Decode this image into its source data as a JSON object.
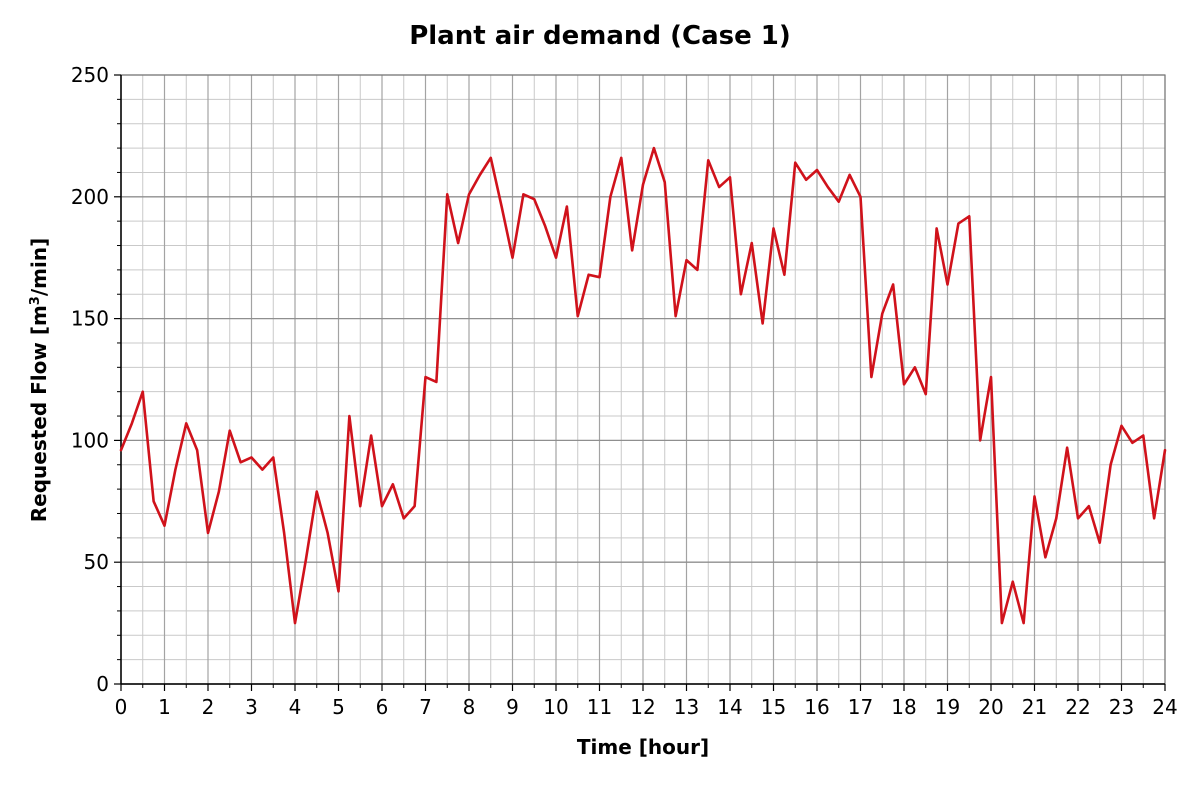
{
  "chart_data": {
    "type": "line",
    "title": "Plant air demand (Case 1)",
    "xlabel": "Time [hour]",
    "ylabel_prefix": "Requested Flow [m",
    "ylabel_sup": "3",
    "ylabel_suffix": "/min]",
    "xlim": [
      0,
      24
    ],
    "ylim": [
      0,
      250
    ],
    "x_ticks": [
      0,
      1,
      2,
      3,
      4,
      5,
      6,
      7,
      8,
      9,
      10,
      11,
      12,
      13,
      14,
      15,
      16,
      17,
      18,
      19,
      20,
      21,
      22,
      23,
      24
    ],
    "y_ticks": [
      0,
      50,
      100,
      150,
      200,
      250
    ],
    "x_minor_step": 0.5,
    "y_minor_step": 10,
    "grid": true,
    "series": [
      {
        "name": "Requested Flow",
        "color": "#d0121b",
        "x": [
          0,
          0.25,
          0.5,
          0.75,
          1,
          1.25,
          1.5,
          1.75,
          2,
          2.25,
          2.5,
          2.75,
          3,
          3.25,
          3.5,
          3.75,
          4,
          4.25,
          4.5,
          4.75,
          5,
          5.25,
          5.5,
          5.75,
          6,
          6.25,
          6.5,
          6.75,
          7,
          7.25,
          7.5,
          7.75,
          8,
          8.25,
          8.5,
          8.75,
          9,
          9.25,
          9.5,
          9.75,
          10,
          10.25,
          10.5,
          10.75,
          11,
          11.25,
          11.5,
          11.75,
          12,
          12.25,
          12.5,
          12.75,
          13,
          13.25,
          13.5,
          13.75,
          14,
          14.25,
          14.5,
          14.75,
          15,
          15.25,
          15.5,
          15.75,
          16,
          16.25,
          16.5,
          16.75,
          17,
          17.25,
          17.5,
          17.75,
          18,
          18.25,
          18.5,
          18.75,
          19,
          19.25,
          19.5,
          19.75,
          20,
          20.25,
          20.5,
          20.75,
          21,
          21.25,
          21.5,
          21.75,
          22,
          22.25,
          22.5,
          22.75,
          23,
          23.25,
          23.5,
          23.75,
          24
        ],
        "y": [
          96,
          107,
          120,
          75,
          65,
          88,
          107,
          96,
          62,
          79,
          104,
          91,
          93,
          88,
          93,
          62,
          25,
          51,
          79,
          62,
          38,
          110,
          73,
          102,
          73,
          82,
          68,
          73,
          126,
          124,
          201,
          181,
          201,
          209,
          216,
          196,
          175,
          201,
          199,
          188,
          175,
          196,
          151,
          168,
          167,
          200,
          216,
          178,
          205,
          220,
          206,
          151,
          174,
          170,
          215,
          204,
          208,
          160,
          181,
          148,
          187,
          168,
          214,
          207,
          211,
          204,
          198,
          209,
          200,
          126,
          152,
          164,
          123,
          130,
          119,
          187,
          164,
          189,
          192,
          100,
          126,
          25,
          42,
          25,
          77,
          52,
          68,
          97,
          68,
          73,
          58,
          90,
          106,
          99,
          102,
          68,
          96
        ]
      }
    ]
  }
}
